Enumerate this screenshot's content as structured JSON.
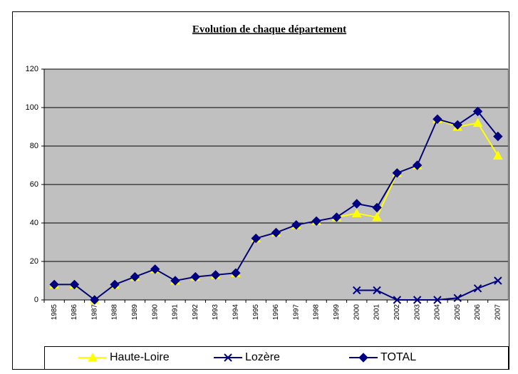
{
  "chart_data": {
    "type": "line",
    "title": "Evolution de chaque département",
    "categories": [
      "1985",
      "1986",
      "1987",
      "1988",
      "1989",
      "1990",
      "1991",
      "1992",
      "1993",
      "1994",
      "1995",
      "1996",
      "1997",
      "1998",
      "1999",
      "2000",
      "2001",
      "2002",
      "2003",
      "2004",
      "2005",
      "2006",
      "2007"
    ],
    "series": [
      {
        "name": "Haute-Loire",
        "color": "#ffff00",
        "marker": "triangle",
        "values": [
          8,
          8,
          0,
          8,
          12,
          16,
          10,
          12,
          13,
          14,
          32,
          35,
          39,
          41,
          43,
          45,
          43,
          66,
          70,
          94,
          90,
          92,
          75
        ]
      },
      {
        "name": "Lozère",
        "color": "#000080",
        "marker": "x",
        "values": [
          null,
          null,
          null,
          null,
          null,
          null,
          null,
          null,
          null,
          null,
          null,
          null,
          null,
          null,
          null,
          5,
          5,
          0,
          0,
          0,
          1,
          6,
          10
        ]
      },
      {
        "name": "TOTAL",
        "color": "#000080",
        "marker": "diamond",
        "values": [
          8,
          8,
          0,
          8,
          12,
          16,
          10,
          12,
          13,
          14,
          32,
          35,
          39,
          41,
          43,
          50,
          48,
          66,
          70,
          94,
          91,
          98,
          85
        ]
      }
    ],
    "ylim": [
      0,
      120
    ],
    "yticks": [
      0,
      20,
      40,
      60,
      80,
      100,
      120
    ],
    "grid": true,
    "legend": "bottom"
  }
}
